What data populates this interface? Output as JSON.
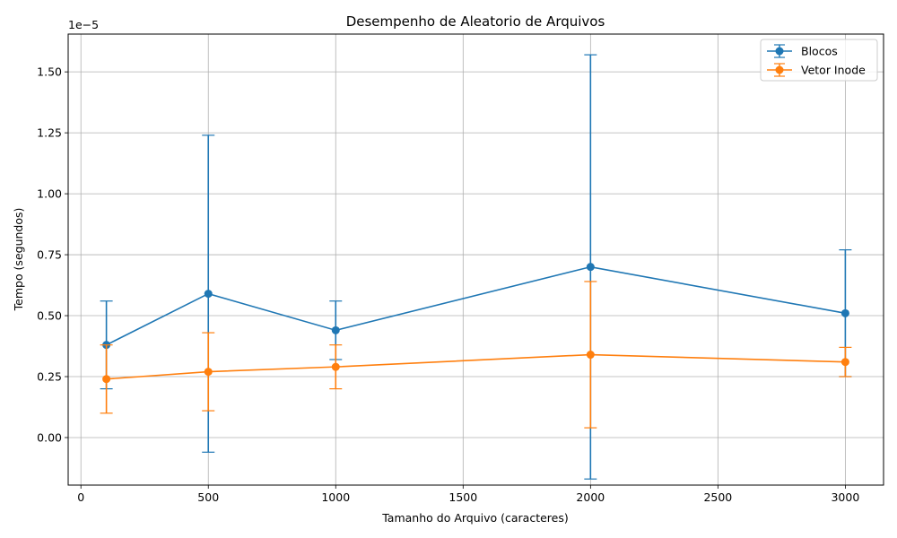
{
  "chart_data": {
    "type": "line",
    "title": "Desempenho de Aleatorio de Arquivos",
    "xlabel": "Tamanho do Arquivo (caracteres)",
    "ylabel": "Tempo (segundos)",
    "y_offset_label": "1e−5",
    "y_scale_factor": 1e-05,
    "xlim": [
      -50,
      3150
    ],
    "ylim": [
      -1.95e-06,
      1.655e-05
    ],
    "x_ticks": [
      0,
      500,
      1000,
      1500,
      2000,
      2500,
      3000
    ],
    "x_tick_labels": [
      "0",
      "500",
      "1000",
      "1500",
      "2000",
      "2500",
      "3000"
    ],
    "y_ticks": [
      0,
      2.5e-06,
      5e-06,
      7.5e-06,
      1e-05,
      1.25e-05,
      1.5e-05
    ],
    "y_tick_labels": [
      "0.00",
      "0.25",
      "0.50",
      "0.75",
      "1.00",
      "1.25",
      "1.50"
    ],
    "grid": true,
    "legend_position": "top-right",
    "x": [
      100,
      500,
      1000,
      2000,
      3000
    ],
    "series": [
      {
        "name": "Blocos",
        "color": "#1f77b4",
        "values": [
          3.8e-06,
          5.9e-06,
          4.4e-06,
          7e-06,
          5.1e-06
        ],
        "errors": [
          1.8e-06,
          6.5e-06,
          1.2e-06,
          8.7e-06,
          2.6e-06
        ]
      },
      {
        "name": "Vetor Inode",
        "color": "#ff7f0e",
        "values": [
          2.4e-06,
          2.7e-06,
          2.9e-06,
          3.4e-06,
          3.1e-06
        ],
        "errors": [
          1.4e-06,
          1.6e-06,
          9e-07,
          3e-06,
          6e-07
        ]
      }
    ]
  }
}
